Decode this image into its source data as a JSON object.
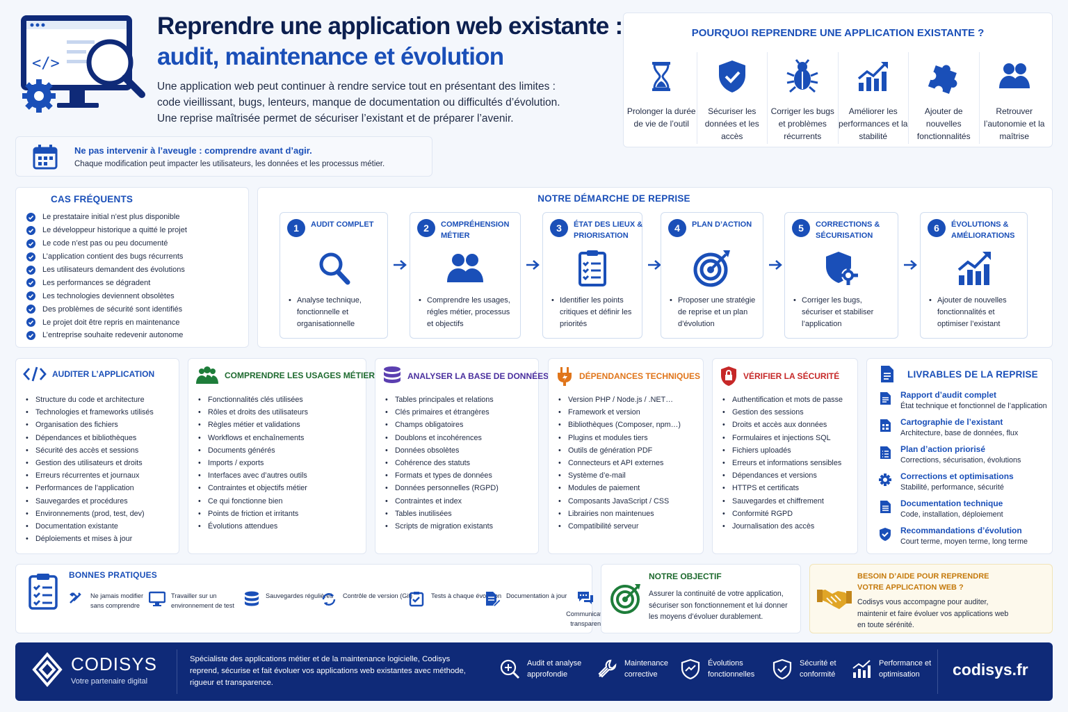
{
  "header": {
    "title_line1": "Reprendre une application web existante :",
    "title_line2": "audit, maintenance et évolution",
    "intro": [
      "Une application web peut continuer à rendre service tout en présentant des limites :",
      "code vieillissant, bugs, lenteurs, manque de documentation ou difficultés d’évolution.",
      "Une reprise maîtrisée permet de sécuriser l’existant et de préparer l’avenir."
    ]
  },
  "why": {
    "title": "POURQUOI REPRENDRE UNE APPLICATION EXISTANTE ?",
    "items": [
      {
        "icon": "hourglass-icon",
        "label": "Prolonger la durée de vie de l’outil"
      },
      {
        "icon": "shield-check-icon",
        "label": "Sécuriser les données et les accès"
      },
      {
        "icon": "bug-icon",
        "label": "Corriger les bugs et problèmes récurrents"
      },
      {
        "icon": "performance-chart-icon",
        "label": "Améliorer les performances et la stabilité"
      },
      {
        "icon": "puzzle-icon",
        "label": "Ajouter de nouvelles fonctionnalités"
      },
      {
        "icon": "users-icon",
        "label": "Retrouver l’autonomie et la maîtrise"
      }
    ]
  },
  "warning": {
    "title": "Ne pas intervenir à l’aveugle : comprendre avant d’agir.",
    "subtitle": "Chaque modification peut impacter les utilisateurs, les données et les processus métier."
  },
  "cases": {
    "title": "CAS FRÉQUENTS",
    "items": [
      "Le prestataire initial n’est plus disponible",
      "Le développeur historique a quitté le projet",
      "Le code n’est pas ou peu documenté",
      "L’application contient des bugs récurrents",
      "Les utilisateurs demandent des évolutions",
      "Les performances se dégradent",
      "Les technologies deviennent obsolètes",
      "Des problèmes de sécurité sont identifiés",
      "Le projet doit être repris en maintenance",
      "L’entreprise souhaite redevenir autonome"
    ]
  },
  "process": {
    "title": "NOTRE DÉMARCHE DE REPRISE",
    "steps": [
      {
        "num": "1",
        "title": "AUDIT COMPLET",
        "icon": "magnifier-icon",
        "desc": "Analyse technique, fonctionnelle et organisationnelle"
      },
      {
        "num": "2",
        "title": "COMPRÉHENSION MÉTIER",
        "icon": "team-icon",
        "desc": "Comprendre les usages, régles métier, processus et objectifs"
      },
      {
        "num": "3",
        "title": "ÉTAT DES LIEUX & PRIORISATION",
        "icon": "checklist-icon",
        "desc": "Identifier les points critiques et définir les priorités"
      },
      {
        "num": "4",
        "title": "PLAN D’ACTION",
        "icon": "target-icon",
        "desc": "Proposer une stratégie de reprise et un plan d’évolution"
      },
      {
        "num": "5",
        "title": "CORRECTIONS & SÉCURISATION",
        "icon": "shield-gear-icon",
        "desc": "Corriger les bugs, sécuriser et stabiliser l’application"
      },
      {
        "num": "6",
        "title": "ÉVOLUTIONS & AMÉLIORATIONS",
        "icon": "growth-chart-icon",
        "desc": "Ajouter de nouvelles fonctionnalités et optimiser l’existant"
      }
    ]
  },
  "columns": [
    {
      "title": "AUDITER L’APPLICATION",
      "icon": "code-icon",
      "color": "#1a4fb8",
      "items": [
        "Structure du code et architecture",
        "Technologies et frameworks utilisés",
        "Organisation des fichiers",
        "Dépendances et bibliothèques",
        "Sécurité des accès et sessions",
        "Gestion des utilisateurs et droits",
        "Erreurs récurrentes et journaux",
        "Performances de l’application",
        "Sauvegardes et procédures",
        "Environnements (prod, test, dev)",
        "Documentation existante",
        "Déploiements et mises à jour"
      ]
    },
    {
      "title": "COMPRENDRE LES USAGES MÉTIER",
      "icon": "people-icon",
      "color": "#1e7d3a",
      "items": [
        "Fonctionnalités clés utilisées",
        "Rôles et droits des utilisateurs",
        "Règles métier et validations",
        "Workflows et enchaînements",
        "Documents générés",
        "Imports / exports",
        "Interfaces avec d’autres outils",
        "Contraintes et objectifs métier",
        "Ce qui fonctionne bien",
        "Points de friction et irritants",
        "Évolutions attendues"
      ]
    },
    {
      "title": "ANALYSER LA BASE DE DONNÉES",
      "icon": "database-icon",
      "color": "#5b3fb0",
      "items": [
        "Tables principales et relations",
        "Clés primaires et étrangères",
        "Champs obligatoires",
        "Doublons et incohérences",
        "Données obsolètes",
        "Cohérence des statuts",
        "Formats et types de données",
        "Données personnelles (RGPD)",
        "Contraintes et index",
        "Tables inutilisées",
        "Scripts de migration existants"
      ]
    },
    {
      "title": "DÉPENDANCES TECHNIQUES",
      "icon": "plug-icon",
      "color": "#e0751a",
      "items": [
        "Version PHP / Node.js / .NET…",
        "Framework et version",
        "Bibliothèques (Composer, npm…)",
        "Plugins et modules tiers",
        "Outils de génération PDF",
        "Connecteurs et API externes",
        "Système d’e-mail",
        "Modules de paiement",
        "Composants JavaScript / CSS",
        "Librairies non maintenues",
        "Compatibilité serveur"
      ]
    },
    {
      "title": "VÉRIFIER LA SÉCURITÉ",
      "icon": "lock-shield-icon",
      "color": "#c62828",
      "items": [
        "Authentification et mots de passe",
        "Gestion des sessions",
        "Droits et accès aux données",
        "Formulaires et injections SQL",
        "Fichiers uploadés",
        "Erreurs et informations sensibles",
        "Dépendances et versions",
        "HTTPS et certificats",
        "Sauvegardes et chiffrement",
        "Conformité RGPD",
        "Journalisation des accès"
      ]
    }
  ],
  "deliverables": {
    "title": "LIVRABLES DE LA REPRISE",
    "items": [
      {
        "icon": "document-icon",
        "title": "Rapport d’audit complet",
        "sub": "État technique et fonctionnel de l’application"
      },
      {
        "icon": "map-document-icon",
        "title": "Cartographie de l’existant",
        "sub": "Architecture, base de données, flux"
      },
      {
        "icon": "list-document-icon",
        "title": "Plan d’action priorisé",
        "sub": "Corrections, sécurisation, évolutions"
      },
      {
        "icon": "gear-icon",
        "title": "Corrections et optimisations",
        "sub": "Stabilité, performance, sécurité"
      },
      {
        "icon": "doc-text-icon",
        "title": "Documentation technique",
        "sub": "Code, installation, déploiement"
      },
      {
        "icon": "shield-icon",
        "title": "Recommandations d’évolution",
        "sub": "Court terme, moyen terme, long terme"
      }
    ]
  },
  "practices": {
    "title": "BONNES PRATIQUES",
    "items": [
      {
        "icon": "tools-icon",
        "label": "Ne jamais modifier sans comprendre"
      },
      {
        "icon": "monitor-icon",
        "label": "Travailler sur un environnement de test"
      },
      {
        "icon": "database-icon",
        "label": "Sauvegardes régulières"
      },
      {
        "icon": "sync-icon",
        "label": "Contrôle de version (Git)"
      },
      {
        "icon": "test-icon",
        "label": "Tests à chaque évolution"
      },
      {
        "icon": "doc-edit-icon",
        "label": "Documentation à jour"
      },
      {
        "icon": "chat-icon",
        "label": "Communication transparente"
      }
    ]
  },
  "objective": {
    "title": "NOTRE OBJECTIF",
    "text": "Assurer la continuité de votre application, sécuriser son fonctionnement et lui donner les moyens d’évoluer durablement."
  },
  "help": {
    "title": "BESOIN D’AIDE POUR REPRENDRE VOTRE APPLICATION WEB ?",
    "text": "Codisys vous accompagne pour auditer, maintenir et faire évoluer vos applications web en toute sérénité."
  },
  "footer": {
    "brand": "CODISYS",
    "tagline": "Votre partenaire digital",
    "description": "Spécialiste des applications métier et de la maintenance logicielle, Codisys reprend, sécurise et fait évoluer vos applications web existantes avec méthode, rigueur et transparence.",
    "services": [
      {
        "icon": "audit-icon",
        "label": "Audit et analyse approfondie"
      },
      {
        "icon": "wrench-icon",
        "label": "Maintenance corrective"
      },
      {
        "icon": "evolution-icon",
        "label": "Évolutions fonctionnelles"
      },
      {
        "icon": "security-icon",
        "label": "Sécurité et conformité"
      },
      {
        "icon": "performance-icon",
        "label": "Performance et optimisation"
      }
    ],
    "website": "codisys.fr"
  },
  "colors": {
    "primary": "#1a4fb8",
    "navy": "#0f2a78",
    "title": "#0c1f4f",
    "orange": "#d08a10"
  }
}
